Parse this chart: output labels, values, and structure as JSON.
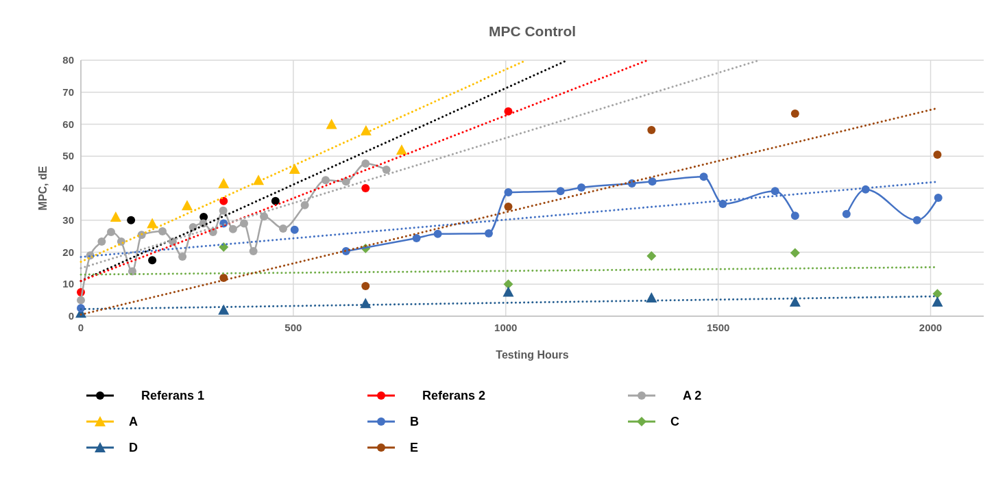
{
  "chart_data": {
    "type": "scatter",
    "title": "MPC Control",
    "xlabel": "Testing Hours",
    "ylabel": "MPC, dE",
    "xlim": [
      0,
      2125
    ],
    "xticks": [
      0,
      500,
      1000,
      1500,
      2000
    ],
    "ylim": [
      0,
      80
    ],
    "yticks": [
      0,
      10,
      20,
      30,
      40,
      50,
      60,
      70,
      80
    ],
    "grid": true,
    "legend": "bottom",
    "series": [
      {
        "name": "Referans 1",
        "marker": "circle",
        "color": "#000000",
        "x": [
          118,
          168,
          289,
          458
        ],
        "values": [
          30,
          17.5,
          31,
          36
        ]
      },
      {
        "name": "Referans 2",
        "marker": "circle",
        "color": "#ff0000",
        "x": [
          0,
          336,
          670,
          1006
        ],
        "values": [
          7.5,
          36,
          40,
          64
        ]
      },
      {
        "name": "A 2",
        "type": "line",
        "marker": "circle",
        "line_style": "solid",
        "color": "#a5a5a5",
        "x": [
          0,
          22,
          49,
          71,
          95,
          121,
          143,
          192,
          216,
          239,
          264,
          288,
          311,
          335,
          358,
          384,
          406,
          431,
          476,
          527,
          576,
          624,
          670,
          719
        ],
        "values": [
          5,
          19,
          23.3,
          26.3,
          23.3,
          14,
          25.4,
          26.5,
          23.3,
          18.6,
          27.8,
          29,
          26.3,
          33,
          27.2,
          29,
          20.3,
          31.2,
          27.4,
          34.7,
          42.5,
          42.1,
          47.7,
          45.8
        ]
      },
      {
        "name": "A",
        "marker": "triangle",
        "color": "#ffc000",
        "x": [
          82,
          168,
          250,
          336,
          418,
          503,
          590,
          671,
          755
        ],
        "values": [
          31,
          29,
          34.6,
          41.5,
          42.5,
          46,
          60,
          58,
          52
        ]
      },
      {
        "name": "B",
        "type": "line",
        "marker": "circle",
        "line_style": "solid",
        "color": "#4472c4",
        "x": [
          0,
          168,
          336,
          420,
          503,
          560,
          624,
          790,
          840,
          960,
          1006,
          1129,
          1178,
          1297,
          1345,
          1466,
          1511,
          1634,
          1681,
          1740,
          1802,
          1847,
          1968,
          2018
        ],
        "values": [
          2.5,
          null,
          29,
          null,
          27,
          null,
          20.3,
          24.4,
          25.7,
          25.9,
          38.7,
          39.1,
          40.2,
          41.5,
          42.1,
          43.6,
          35.1,
          39.1,
          31.4,
          null,
          31.9,
          39.6,
          30,
          37
        ]
      },
      {
        "name": "C",
        "marker": "diamond",
        "color": "#70ad47",
        "x": [
          336,
          670,
          1006,
          1343,
          1681,
          2016
        ],
        "values": [
          21.6,
          21.2,
          10,
          18.8,
          19.8,
          7
        ]
      },
      {
        "name": "D",
        "marker": "triangle",
        "color": "#255e91",
        "x": [
          0,
          336,
          670,
          1006,
          1343,
          1681,
          2016
        ],
        "values": [
          1,
          2,
          4,
          7.6,
          5.8,
          4.5,
          4.5
        ]
      },
      {
        "name": "E",
        "marker": "circle",
        "color": "#9e480e",
        "x": [
          336,
          670,
          1006,
          1343,
          1681,
          2016
        ],
        "values": [
          12,
          9.4,
          34.2,
          58.2,
          63.3,
          50.5
        ]
      },
      {
        "type": "line",
        "marker": "none",
        "line_style": "dotted",
        "color": "#000000",
        "x": [
          0,
          1145
        ],
        "values": [
          11,
          80
        ]
      },
      {
        "type": "line",
        "marker": "none",
        "line_style": "dotted",
        "color": "#ff0000",
        "x": [
          0,
          1334
        ],
        "values": [
          11,
          80
        ]
      },
      {
        "type": "line",
        "marker": "none",
        "line_style": "dotted",
        "color": "#a5a5a5",
        "x": [
          0,
          1597
        ],
        "values": [
          15,
          80
        ]
      },
      {
        "type": "line",
        "marker": "none",
        "line_style": "dotted",
        "color": "#ffc000",
        "x": [
          0,
          1048
        ],
        "values": [
          17,
          80
        ]
      },
      {
        "type": "line",
        "marker": "none",
        "line_style": "dotted",
        "color": "#4472c4",
        "x": [
          0,
          2016
        ],
        "values": [
          18.5,
          42
        ]
      },
      {
        "type": "line",
        "marker": "none",
        "line_style": "dotted",
        "color": "#70ad47",
        "x": [
          0,
          2016
        ],
        "values": [
          13,
          15.3
        ]
      },
      {
        "type": "line",
        "marker": "none",
        "line_style": "dotted",
        "color": "#255e91",
        "x": [
          0,
          2016
        ],
        "values": [
          2.2,
          6.2
        ]
      },
      {
        "type": "line",
        "marker": "none",
        "line_style": "dotted",
        "color": "#9e480e",
        "x": [
          0,
          2016
        ],
        "values": [
          0.5,
          65
        ]
      }
    ]
  }
}
